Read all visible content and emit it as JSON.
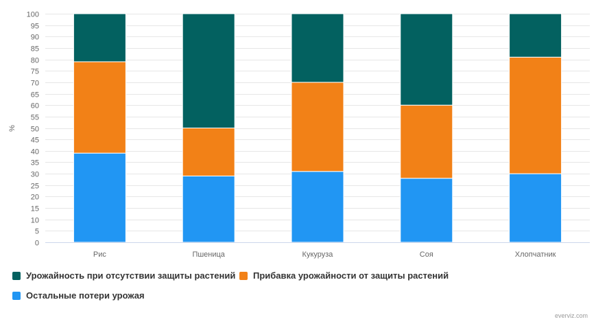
{
  "chart_data": {
    "type": "bar",
    "stacked": true,
    "ylabel": "%",
    "ylim": [
      0,
      100
    ],
    "ytick_step": 5,
    "grid": true,
    "legend_position": "bottom-left",
    "categories": [
      "Рис",
      "Пшеница",
      "Кукуруза",
      "Соя",
      "Хлопчатник"
    ],
    "series": [
      {
        "name": "Остальные потери урожая",
        "color": "#2196f3",
        "values": [
          39,
          29,
          31,
          28,
          30
        ]
      },
      {
        "name": "Прибавка урожайности от защиты растений",
        "color": "#f28117",
        "values": [
          40,
          21,
          39,
          32,
          51
        ]
      },
      {
        "name": "Урожайность при отсутствии защиты растений",
        "color": "#036160",
        "values": [
          21,
          50,
          30,
          40,
          19
        ]
      }
    ],
    "legend_order": [
      2,
      1,
      0
    ]
  },
  "credit": "everviz.com"
}
